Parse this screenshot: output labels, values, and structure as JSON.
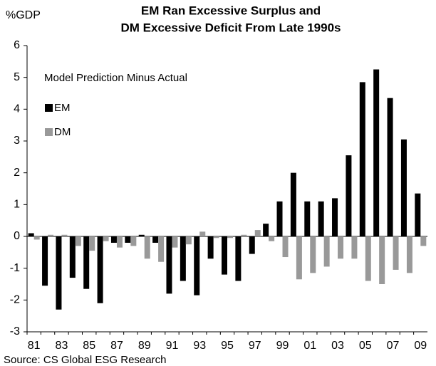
{
  "chart_data": {
    "type": "bar",
    "title": [
      "EM Ran Excessive Surplus and",
      "DM Excessive Deficit From Late 1990s"
    ],
    "ylabel": "%GDP",
    "legend_title": "Model Prediction Minus Actual",
    "categories": [
      "81",
      null,
      "83",
      null,
      "85",
      null,
      "87",
      null,
      "89",
      null,
      "91",
      null,
      "93",
      null,
      "95",
      null,
      "97",
      null,
      "99",
      null,
      "01",
      null,
      "03",
      null,
      "05",
      null,
      "07",
      null,
      "09"
    ],
    "series": [
      {
        "name": "EM",
        "color": "#000000",
        "values": [
          0.1,
          -1.55,
          -2.3,
          -1.3,
          -1.65,
          -2.1,
          -0.2,
          -0.2,
          0.05,
          -0.2,
          -1.8,
          -1.4,
          -1.85,
          -0.7,
          -1.2,
          -1.4,
          -0.55,
          0.4,
          1.1,
          2.0,
          1.1,
          1.1,
          1.2,
          2.55,
          4.85,
          5.25,
          4.35,
          3.05,
          1.35
        ]
      },
      {
        "name": "DM",
        "color": "#999999",
        "values": [
          -0.1,
          0.05,
          0.05,
          -0.3,
          -0.45,
          -0.15,
          -0.35,
          -0.3,
          -0.7,
          -0.8,
          -0.35,
          -0.25,
          0.15,
          -0.05,
          -0.05,
          0.05,
          0.2,
          -0.15,
          -0.65,
          -1.35,
          -1.15,
          -0.95,
          -0.7,
          -0.7,
          -1.4,
          -1.5,
          -1.05,
          -1.15,
          -0.3
        ]
      }
    ],
    "ylim": [
      -3,
      6
    ],
    "yticks": [
      -3,
      -2,
      -1,
      0,
      1,
      2,
      3,
      4,
      5,
      6
    ],
    "source": "Source: CS Global ESG Research"
  }
}
